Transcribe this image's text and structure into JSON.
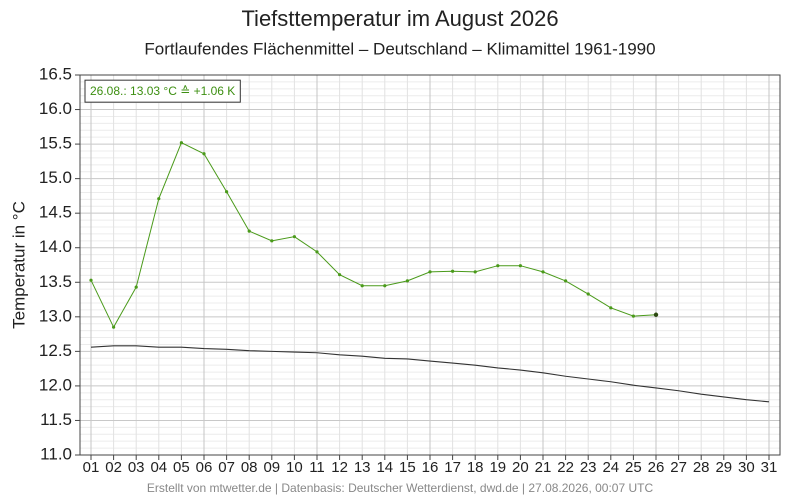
{
  "chart_data": {
    "type": "line",
    "title": "Tiefsttemperatur im August 2026",
    "subtitle": "Fortlaufendes Flächenmittel – Deutschland – Klimamittel 1961-1990",
    "y_label": "Temperatur in °C",
    "annotation": "26.08.: 13.03 °C ≙ +1.06 K",
    "footer": "Erstellt von mtwetter.de | Datenbasis: Deutscher Wetterdienst, dwd.de | 27.08.2026, 00:07 UTC",
    "categories": [
      "01",
      "02",
      "03",
      "04",
      "05",
      "06",
      "07",
      "08",
      "09",
      "10",
      "11",
      "12",
      "13",
      "14",
      "15",
      "16",
      "17",
      "18",
      "19",
      "20",
      "21",
      "22",
      "23",
      "24",
      "25",
      "26",
      "27",
      "28",
      "29",
      "30",
      "31"
    ],
    "series": [
      {
        "color": "#4a9a1a",
        "markers": true,
        "values": [
          13.53,
          12.85,
          13.43,
          14.71,
          15.52,
          15.36,
          14.81,
          14.24,
          14.1,
          14.16,
          13.94,
          13.61,
          13.45,
          13.45,
          13.52,
          13.65,
          13.66,
          13.65,
          13.74,
          13.74,
          13.65,
          13.52,
          13.33,
          13.13,
          13.01,
          13.03,
          null,
          null,
          null,
          null,
          null
        ]
      },
      {
        "color": "#333333",
        "markers": false,
        "values": [
          12.56,
          12.58,
          12.58,
          12.56,
          12.56,
          12.54,
          12.53,
          12.51,
          12.5,
          12.49,
          12.48,
          12.45,
          12.43,
          12.4,
          12.39,
          12.36,
          12.33,
          12.3,
          12.26,
          12.23,
          12.19,
          12.14,
          12.1,
          12.06,
          12.01,
          11.97,
          11.93,
          11.88,
          11.84,
          11.8,
          11.77
        ]
      }
    ],
    "ylim": [
      11.0,
      16.5
    ],
    "yticks": [
      {
        "value": 11,
        "label": "11.0"
      },
      11.5,
      {
        "value": 12,
        "label": "12.0"
      },
      12.5,
      {
        "value": 13,
        "label": "13.0"
      },
      13.5,
      {
        "value": 14,
        "label": "14.0"
      },
      14.5,
      {
        "value": 15,
        "label": "15.0"
      },
      15.5,
      {
        "value": 16,
        "label": "16.0"
      },
      16.5
    ],
    "grid": true
  }
}
